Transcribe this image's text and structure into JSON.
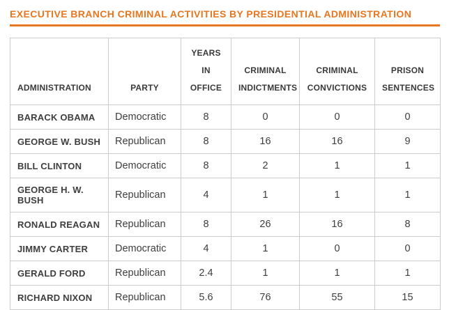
{
  "page": {
    "title": "EXECUTIVE BRANCH CRIMINAL ACTIVITIES BY PRESIDENTIAL ADMINISTRATION"
  },
  "colors": {
    "title_orange": "#e8761f",
    "border_gray": "#cccccc",
    "text_dark": "#3e3e3e"
  },
  "table": {
    "headers": {
      "administration": "ADMINISTRATION",
      "party": "PARTY",
      "years_line1": "YEARS IN",
      "years_line2": "OFFICE",
      "indictments_line1": "CRIMINAL",
      "indictments_line2": "INDICTMENTS",
      "convictions_line1": "CRIMINAL",
      "convictions_line2": "CONVICTIONS",
      "sentences_line1": "PRISON",
      "sentences_line2": "SENTENCES"
    },
    "rows": [
      {
        "administration": "BARACK OBAMA",
        "party": "Democratic",
        "years": "8",
        "indictments": "0",
        "convictions": "0",
        "sentences": "0"
      },
      {
        "administration": "GEORGE W. BUSH",
        "party": "Republican",
        "years": "8",
        "indictments": "16",
        "convictions": "16",
        "sentences": "9"
      },
      {
        "administration": "BILL CLINTON",
        "party": "Democratic",
        "years": "8",
        "indictments": "2",
        "convictions": "1",
        "sentences": "1"
      },
      {
        "administration": "GEORGE H. W. BUSH",
        "party": "Republican",
        "years": "4",
        "indictments": "1",
        "convictions": "1",
        "sentences": "1"
      },
      {
        "administration": "RONALD REAGAN",
        "party": "Republican",
        "years": "8",
        "indictments": "26",
        "convictions": "16",
        "sentences": "8"
      },
      {
        "administration": "JIMMY CARTER",
        "party": "Democratic",
        "years": "4",
        "indictments": "1",
        "convictions": "0",
        "sentences": "0"
      },
      {
        "administration": "GERALD FORD",
        "party": "Republican",
        "years": "2.4",
        "indictments": "1",
        "convictions": "1",
        "sentences": "1"
      },
      {
        "administration": "RICHARD NIXON",
        "party": "Republican",
        "years": "5.6",
        "indictments": "76",
        "convictions": "55",
        "sentences": "15"
      }
    ]
  },
  "chart_data": {
    "type": "table",
    "title": "EXECUTIVE BRANCH CRIMINAL ACTIVITIES BY PRESIDENTIAL ADMINISTRATION",
    "columns": [
      "ADMINISTRATION",
      "PARTY",
      "YEARS IN OFFICE",
      "CRIMINAL INDICTMENTS",
      "CRIMINAL CONVICTIONS",
      "PRISON SENTENCES"
    ],
    "rows": [
      [
        "BARACK OBAMA",
        "Democratic",
        8,
        0,
        0,
        0
      ],
      [
        "GEORGE W. BUSH",
        "Republican",
        8,
        16,
        16,
        9
      ],
      [
        "BILL CLINTON",
        "Democratic",
        8,
        2,
        1,
        1
      ],
      [
        "GEORGE H. W. BUSH",
        "Republican",
        4,
        1,
        1,
        1
      ],
      [
        "RONALD REAGAN",
        "Republican",
        8,
        26,
        16,
        8
      ],
      [
        "JIMMY CARTER",
        "Democratic",
        4,
        1,
        0,
        0
      ],
      [
        "GERALD FORD",
        "Republican",
        2.4,
        1,
        1,
        1
      ],
      [
        "RICHARD NIXON",
        "Republican",
        5.6,
        76,
        55,
        15
      ]
    ]
  }
}
